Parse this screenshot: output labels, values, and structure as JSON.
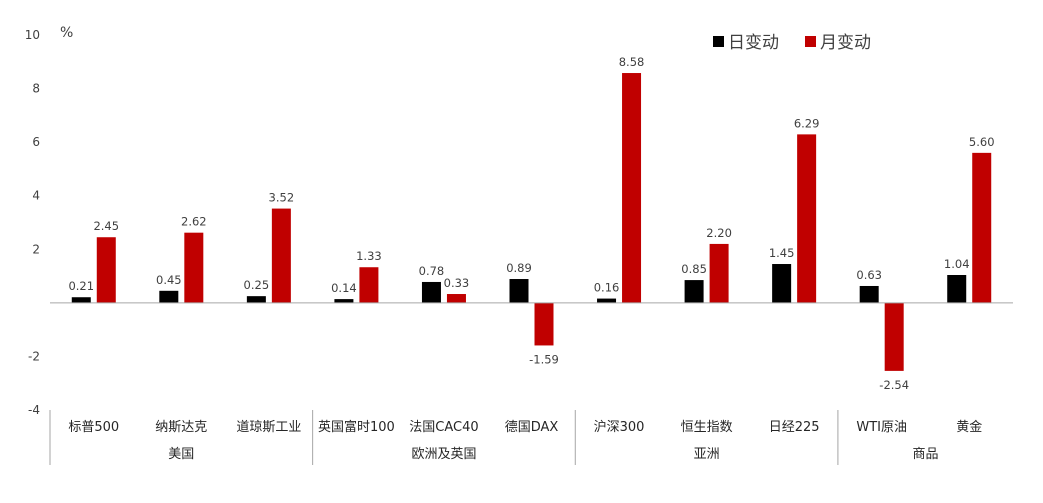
{
  "chart_data": {
    "type": "bar",
    "unit_label": "%",
    "ylim": [
      -4,
      10
    ],
    "yticks": [
      -4,
      -2,
      0,
      2,
      4,
      6,
      8,
      10
    ],
    "ytick_labels": [
      "-4",
      "-2",
      "",
      "2",
      "4",
      "6",
      "8",
      "10"
    ],
    "categories": [
      "标普500",
      "纳斯达克",
      "道琼斯工业",
      "英国富时100",
      "法国CAC40",
      "德国DAX",
      "沪深300",
      "恒生指数",
      "日经225",
      "WTI原油",
      "黄金"
    ],
    "groups": [
      {
        "label": "美国",
        "count": 3
      },
      {
        "label": "欧洲及英国",
        "count": 3
      },
      {
        "label": "亚洲",
        "count": 3
      },
      {
        "label": "商品",
        "count": 2
      }
    ],
    "series": [
      {
        "name": "日变动",
        "color": "#000000",
        "values": [
          0.21,
          0.45,
          0.25,
          0.14,
          0.78,
          0.89,
          0.16,
          0.85,
          1.45,
          0.63,
          1.04
        ]
      },
      {
        "name": "月变动",
        "color": "#c00000",
        "values": [
          2.45,
          2.62,
          3.52,
          1.33,
          0.33,
          -1.59,
          8.58,
          2.2,
          6.29,
          -2.54,
          5.6
        ]
      }
    ],
    "data_labels": [
      [
        "0.21",
        "0.45",
        "0.25",
        "0.14",
        "0.78",
        "0.89",
        "0.16",
        "0.85",
        "1.45",
        "0.63",
        "1.04"
      ],
      [
        "2.45",
        "2.62",
        "3.52",
        "1.33",
        "0.33",
        "-1.59",
        "8.58",
        "2.20",
        "6.29",
        "-2.54",
        "5.60"
      ]
    ],
    "legend_position": "top-right",
    "grid": false
  }
}
